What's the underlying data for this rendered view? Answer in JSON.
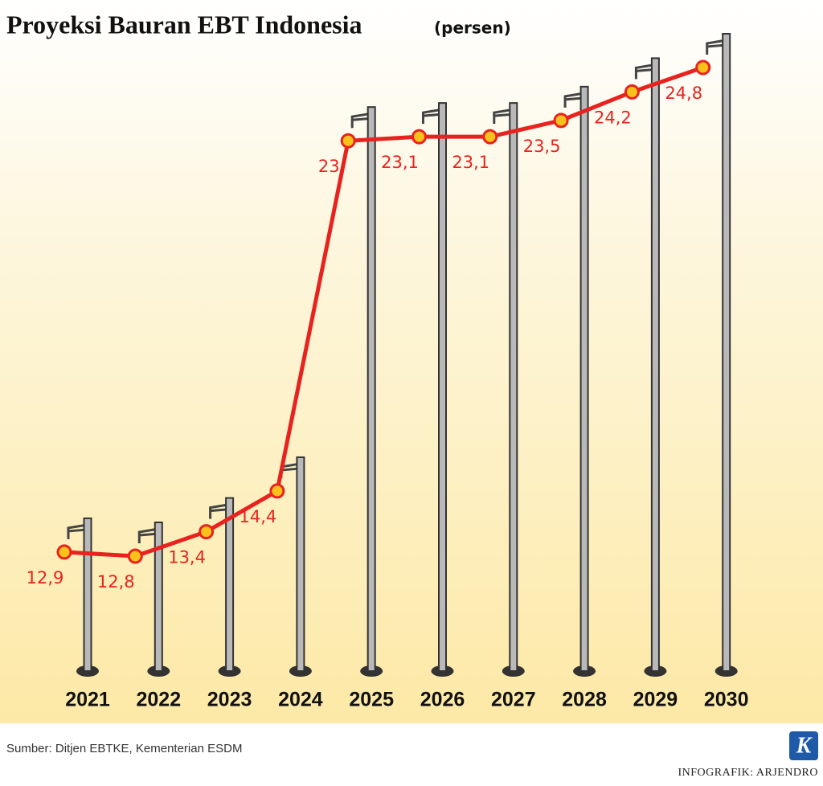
{
  "chart_data": {
    "type": "line",
    "title": "Proyeksi Bauran EBT Indonesia",
    "unit": "(persen)",
    "categories": [
      "2021",
      "2022",
      "2023",
      "2024",
      "2025",
      "2026",
      "2027",
      "2028",
      "2029",
      "2030"
    ],
    "values": [
      12.9,
      12.8,
      13.4,
      14.4,
      23,
      23.1,
      23.1,
      23.5,
      24.2,
      24.8
    ],
    "value_labels": [
      "12,9",
      "12,8",
      "13,4",
      "14,4",
      "23",
      "23,1",
      "23,1",
      "23,5",
      "24,2",
      "24,8"
    ],
    "color": "#e8231f",
    "marker_color": "#f9c21b",
    "source": "Sumber:  Ditjen EBTKE, Kementerian ESDM",
    "credit": "INFOGRAFIK: ARJENDRO",
    "logo": "K"
  }
}
